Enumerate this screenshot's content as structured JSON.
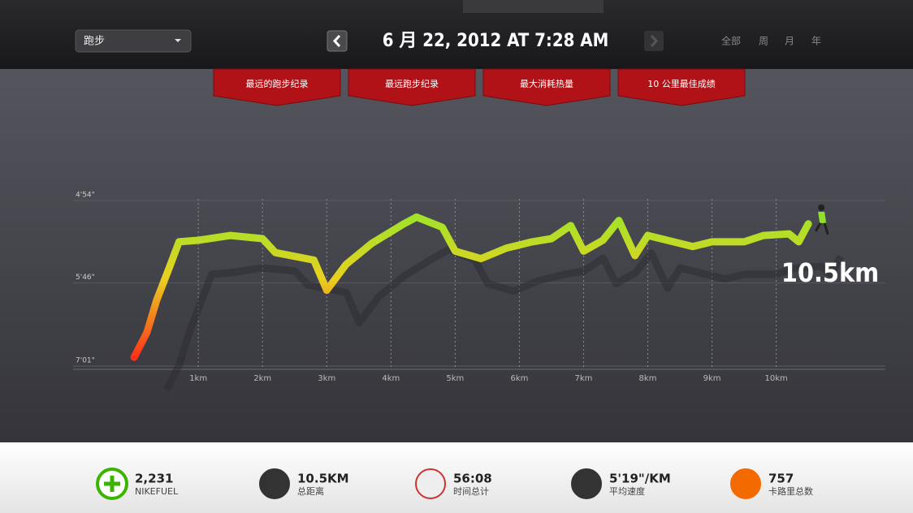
{
  "header": {
    "activity": "跑步",
    "date": "6 月 22, 2012 AT 7:28 AM",
    "periods": [
      "全部",
      "周",
      "月",
      "年"
    ]
  },
  "badges": [
    "最远的跑步纪录",
    "最远跑步纪录",
    "最大消耗热量",
    "10 公里最佳成绩"
  ],
  "chart": {
    "type": "line",
    "color_fast": "#9be52a",
    "color_slow": "#ff2a1a",
    "x": [
      0,
      0.2,
      0.35,
      0.55,
      0.7,
      1.0,
      1.5,
      2.0,
      2.2,
      2.8,
      3.0,
      3.3,
      3.7,
      4.2,
      4.4,
      4.8,
      5.0,
      5.4,
      5.8,
      6.2,
      6.5,
      6.8,
      7.0,
      7.3,
      7.55,
      7.8,
      8.0,
      8.4,
      8.7,
      9.0,
      9.5,
      9.8,
      10.2,
      10.35,
      10.5
    ],
    "values": [
      415,
      390,
      362,
      337,
      320,
      319,
      316,
      318,
      327,
      332,
      354,
      335,
      321,
      309,
      305,
      311,
      326,
      331,
      324,
      320,
      318,
      310,
      326,
      319,
      307,
      329,
      316,
      320,
      323,
      320,
      320,
      316,
      315,
      320,
      309
    ],
    "xlim": [
      -0.95,
      11.7
    ],
    "ylim": [
      294,
      421
    ],
    "yscale": "reciprocal",
    "xticks": [
      {
        "value": 1,
        "label": "1km"
      },
      {
        "value": 2,
        "label": "2km"
      },
      {
        "value": 3,
        "label": "3km"
      },
      {
        "value": 4,
        "label": "4km"
      },
      {
        "value": 5,
        "label": "5km"
      },
      {
        "value": 6,
        "label": "6km"
      },
      {
        "value": 7,
        "label": "7km"
      },
      {
        "value": 8,
        "label": "8km"
      },
      {
        "value": 9,
        "label": "9km"
      },
      {
        "value": 10,
        "label": "10km"
      }
    ],
    "yticks": [
      {
        "value": 294,
        "label": "4'54\""
      },
      {
        "value": 346,
        "label": "5'46\""
      },
      {
        "value": 421,
        "label": "7'01\""
      }
    ],
    "end_label": "10.5km"
  },
  "stats": [
    {
      "value": "2,231",
      "label": "NIKEFUEL"
    },
    {
      "value": "10.5KM",
      "label": "总距离"
    },
    {
      "value": "56:08",
      "label": "时间总计"
    },
    {
      "value": "5'19\"/KM",
      "label": "平均速度"
    },
    {
      "value": "757",
      "label": "卡路里总数"
    }
  ]
}
